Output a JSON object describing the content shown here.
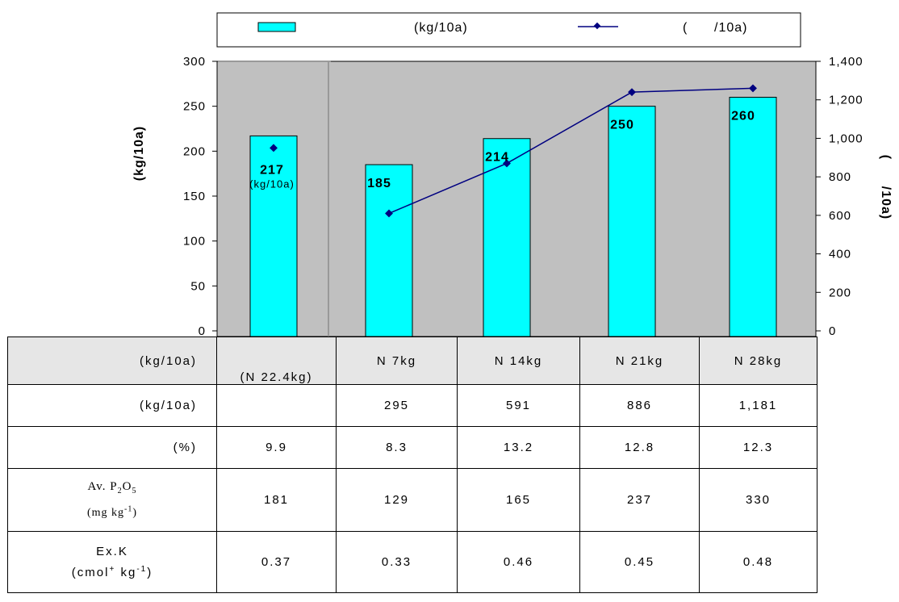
{
  "chart_data": {
    "type": "bar+line",
    "categories": [
      "(N 22.4kg)",
      "N 7kg",
      "N 14kg",
      "N 21kg",
      "N 28kg"
    ],
    "series": [
      {
        "name": "(kg/10a)",
        "type": "bar",
        "axis": "left",
        "values": [
          217,
          185,
          214,
          250,
          260
        ]
      },
      {
        "name": "(      /10a)",
        "type": "line",
        "axis": "right",
        "values": [
          950,
          610,
          870,
          1240,
          1260
        ]
      }
    ],
    "data_labels": [
      "217",
      "185",
      "214",
      "250",
      "260"
    ],
    "first_bar_sublabel": "(kg/10a)",
    "ylabel_left": "(kg/10a)",
    "ylabel_right": "(      /10a)",
    "ylim_left": [
      0,
      300
    ],
    "ylim_right": [
      0,
      1400
    ],
    "yticks_left": [
      "0",
      "50",
      "100",
      "150",
      "200",
      "250",
      "300"
    ],
    "yticks_right": [
      "0",
      "200",
      "400",
      "600",
      "800",
      "1,000",
      "1,200",
      "1,400"
    ],
    "legend_position": "top",
    "colors": {
      "bar": "#00ffff",
      "line": "#000080",
      "plot_bg": "#c0c0c0"
    }
  },
  "table": {
    "rows": [
      {
        "header": "(kg/10a)",
        "cells": [
          "(N 22.4kg)",
          "N 7kg",
          "N 14kg",
          "N 21kg",
          "N 28kg"
        ]
      },
      {
        "header": "(kg/10a)",
        "cells": [
          "",
          "295",
          "591",
          "886",
          "1,181"
        ]
      },
      {
        "header": "(%)",
        "cells": [
          "9.9",
          "8.3",
          "13.2",
          "12.8",
          "12.3"
        ]
      },
      {
        "header_line1": "Av. P",
        "header_sub1": "2",
        "header_mid": "O",
        "header_sub2": "5",
        "header_line2": "(mg  kg",
        "header_sup": "-1",
        "header_end": ")",
        "cells": [
          "181",
          "129",
          "165",
          "237",
          "330"
        ]
      },
      {
        "header_line1": "Ex.K",
        "header_line2": "(cmol",
        "header_sup1": "+",
        "header_mid": " kg",
        "header_sup2": "-1",
        "header_end": ")",
        "cells": [
          "0.37",
          "0.33",
          "0.46",
          "0.45",
          "0.48"
        ]
      }
    ]
  }
}
